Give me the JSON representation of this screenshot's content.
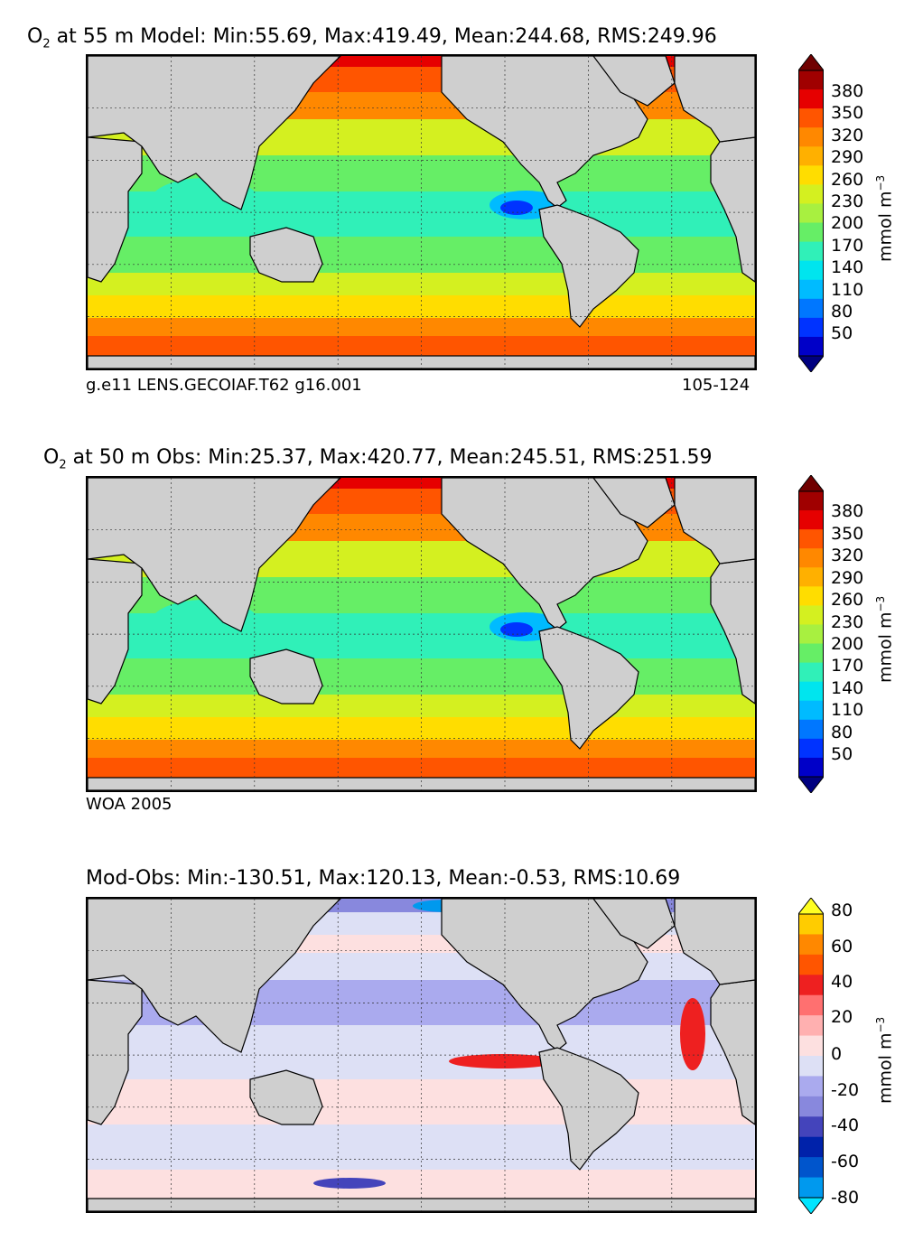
{
  "panels": [
    {
      "title_prefix": "O",
      "title_sub": "2",
      "title_rest": " at 55 m Model: Min:55.69, Max:419.49, Mean:244.68, RMS:249.96",
      "caption_left": "g.e11 LENS.GECOIAF.T62 g16.001",
      "caption_right": "105-124",
      "colorbar_ticks": [
        "380",
        "350",
        "320",
        "290",
        "260",
        "230",
        "200",
        "170",
        "140",
        "110",
        "80",
        "50"
      ],
      "unit_label": "mmol m",
      "unit_exp": "−3"
    },
    {
      "title_prefix": "O",
      "title_sub": "2",
      "title_rest": " at 50 m Obs: Min:25.37, Max:420.77, Mean:245.51, RMS:251.59",
      "caption_left": "WOA 2005",
      "caption_right": "",
      "colorbar_ticks": [
        "380",
        "350",
        "320",
        "290",
        "260",
        "230",
        "200",
        "170",
        "140",
        "110",
        "80",
        "50"
      ],
      "unit_label": "mmol m",
      "unit_exp": "−3"
    },
    {
      "title_prefix": "",
      "title_sub": "",
      "title_rest": "Mod-Obs: Min:-130.51, Max:120.13, Mean:-0.53, RMS:10.69",
      "caption_left": "",
      "caption_right": "",
      "colorbar_ticks": [
        "80",
        "60",
        "40",
        "20",
        "0",
        "-20",
        "-40",
        "-60",
        "-80"
      ],
      "unit_label": "mmol m",
      "unit_exp": "−3"
    }
  ],
  "colors": {
    "land": "#cfcfcf",
    "o2_scale": [
      "#000080",
      "#0000c8",
      "#0033ff",
      "#0077ff",
      "#00bbff",
      "#00e5ee",
      "#30f0b8",
      "#66ee66",
      "#a8f040",
      "#d4f020",
      "#ffdd00",
      "#ffb000",
      "#ff8800",
      "#ff5500",
      "#e60000",
      "#a00000",
      "#700000"
    ],
    "diff_scale": [
      "#00e5ff",
      "#0099ee",
      "#0055cc",
      "#0022aa",
      "#4444bb",
      "#8888dd",
      "#aaaaee",
      "#dde0f5",
      "#fde0e0",
      "#ffb0b0",
      "#ff7070",
      "#ee2020",
      "#ff5500",
      "#ff8800",
      "#ffcc00",
      "#ffff22"
    ]
  }
}
